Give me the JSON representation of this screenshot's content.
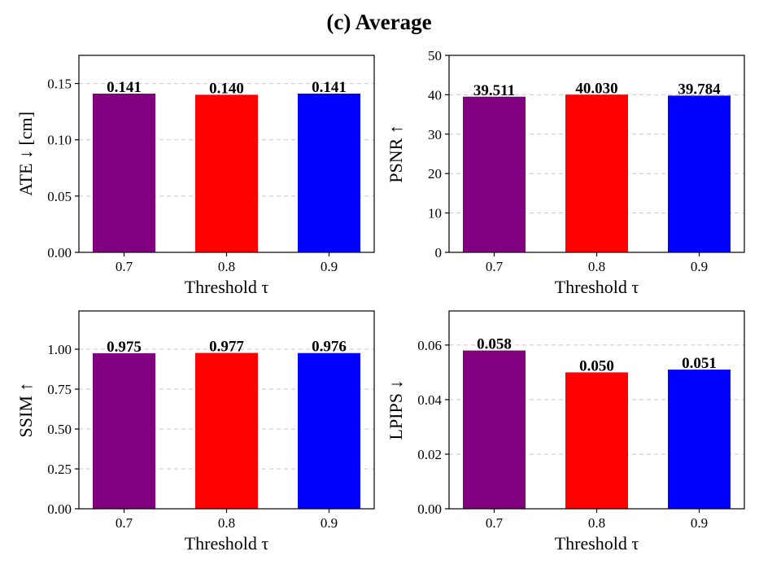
{
  "title": "(c) Average",
  "chart_data": [
    {
      "type": "bar",
      "categories": [
        "0.7",
        "0.8",
        "0.9"
      ],
      "values": [
        0.141,
        0.14,
        0.141
      ],
      "data_labels": [
        "0.141",
        "0.140",
        "0.141"
      ],
      "colors": [
        "#800080",
        "#ff0000",
        "#0000ff"
      ],
      "xlabel": "Threshold τ",
      "ylabel": "ATE ↓  [cm]",
      "ylim": [
        0,
        0.175
      ],
      "yticks": [
        0,
        0.05,
        0.1,
        0.15
      ],
      "ytick_labels": [
        "0.00",
        "0.05",
        "0.10",
        "0.15"
      ],
      "grid": true
    },
    {
      "type": "bar",
      "categories": [
        "0.7",
        "0.8",
        "0.9"
      ],
      "values": [
        39.511,
        40.03,
        39.784
      ],
      "data_labels": [
        "39.511",
        "40.030",
        "39.784"
      ],
      "colors": [
        "#800080",
        "#ff0000",
        "#0000ff"
      ],
      "xlabel": "Threshold τ",
      "ylabel": "PSNR ↑",
      "ylim": [
        0,
        50
      ],
      "yticks": [
        0,
        10,
        20,
        30,
        40,
        50
      ],
      "ytick_labels": [
        "0",
        "10",
        "20",
        "30",
        "40",
        "50"
      ],
      "grid": true
    },
    {
      "type": "bar",
      "categories": [
        "0.7",
        "0.8",
        "0.9"
      ],
      "values": [
        0.975,
        0.977,
        0.976
      ],
      "data_labels": [
        "0.975",
        "0.977",
        "0.976"
      ],
      "colors": [
        "#800080",
        "#ff0000",
        "#0000ff"
      ],
      "xlabel": "Threshold τ",
      "ylabel": "SSIM ↑",
      "ylim": [
        0,
        1.24
      ],
      "yticks": [
        0,
        0.25,
        0.5,
        0.75,
        1.0
      ],
      "ytick_labels": [
        "0.00",
        "0.25",
        "0.50",
        "0.75",
        "1.00"
      ],
      "grid": true
    },
    {
      "type": "bar",
      "categories": [
        "0.7",
        "0.8",
        "0.9"
      ],
      "values": [
        0.058,
        0.05,
        0.051
      ],
      "data_labels": [
        "0.058",
        "0.050",
        "0.051"
      ],
      "colors": [
        "#800080",
        "#ff0000",
        "#0000ff"
      ],
      "xlabel": "Threshold τ",
      "ylabel": "LPIPS ↓",
      "ylim": [
        0,
        0.0725
      ],
      "yticks": [
        0,
        0.02,
        0.04,
        0.06
      ],
      "ytick_labels": [
        "0.00",
        "0.02",
        "0.04",
        "0.06"
      ],
      "grid": true
    }
  ]
}
